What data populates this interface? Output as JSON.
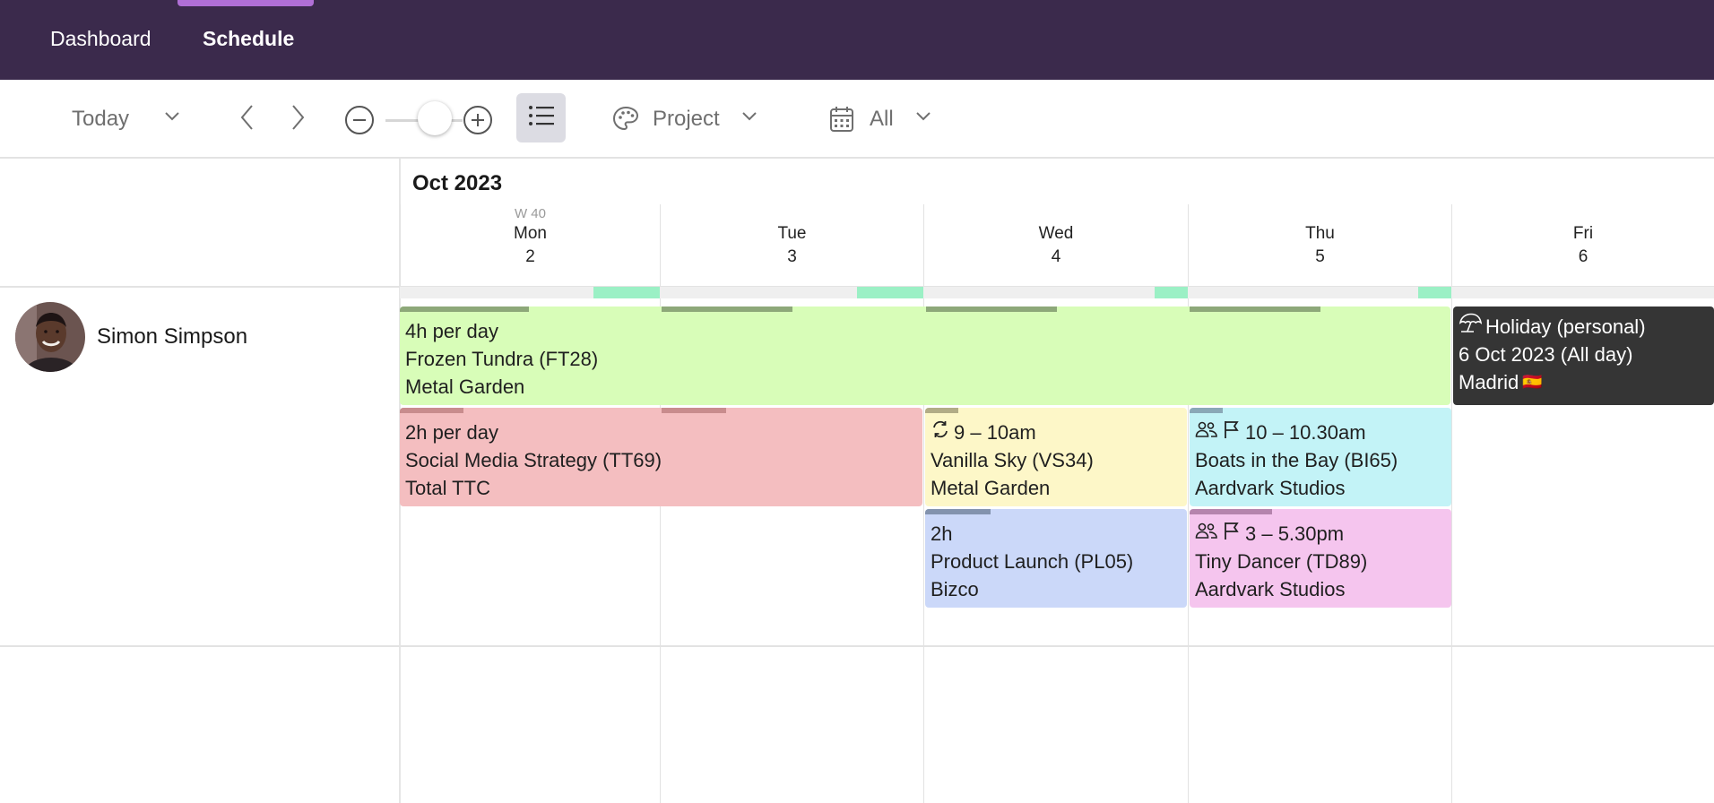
{
  "nav": {
    "items": [
      {
        "label": "Dashboard"
      },
      {
        "label": "Schedule"
      }
    ]
  },
  "toolbar": {
    "today_label": "Today",
    "project_label": "Project",
    "filter_label": "All"
  },
  "calendar": {
    "month_label": "Oct 2023",
    "week_label": "W 40",
    "days": [
      {
        "name": "Mon",
        "date": "2"
      },
      {
        "name": "Tue",
        "date": "3"
      },
      {
        "name": "Wed",
        "date": "4"
      },
      {
        "name": "Thu",
        "date": "5"
      },
      {
        "name": "Fri",
        "date": "6"
      }
    ]
  },
  "person": {
    "name": "Simon Simpson"
  },
  "events": {
    "frozen": {
      "line1": "4h per day",
      "line2": "Frozen Tundra (FT28)",
      "line3": "Metal Garden",
      "color": "#d8fdb8"
    },
    "social": {
      "line1": "2h per day",
      "line2": "Social Media Strategy (TT69)",
      "line3": "Total TTC",
      "color": "#f4bec0"
    },
    "vanilla": {
      "line1": "9 – 10am",
      "line2": "Vanilla Sky (VS34)",
      "line3": "Metal Garden",
      "color": "#fdf7c8"
    },
    "boats": {
      "line1": "10 – 10.30am",
      "line2": "Boats in the Bay (BI65)",
      "line3": "Aardvark Studios",
      "color": "#c3f3f7"
    },
    "product": {
      "line1": "2h",
      "line2": "Product Launch (PL05)",
      "line3": "Bizco",
      "color": "#cbd8f9"
    },
    "tiny": {
      "line1": "3 – 5.30pm",
      "line2": "Tiny Dancer (TD89)",
      "line3": "Aardvark Studios",
      "color": "#f5c5ee"
    },
    "holiday": {
      "line1": "Holiday (personal)",
      "line2": "6 Oct 2023 (All day)",
      "line3": "Madrid",
      "flag": "🇪🇸",
      "color": "#353535"
    }
  }
}
